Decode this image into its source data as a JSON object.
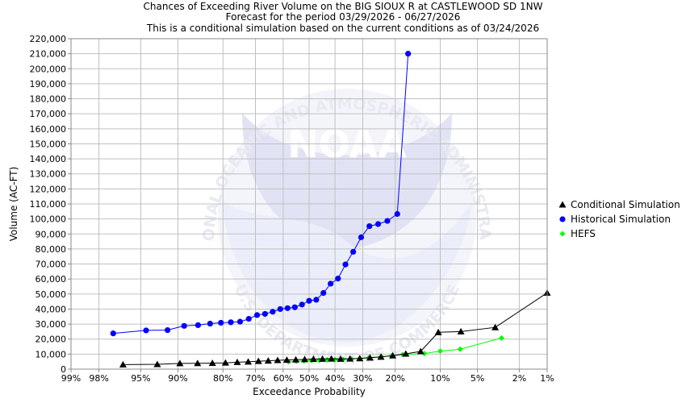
{
  "chart_data": {
    "type": "line",
    "title_lines": [
      "Chances of Exceeding River Volume on the BIG SIOUX R at CASTLEWOOD SD 1NW",
      "Forecast for the period 03/29/2026 - 06/27/2026",
      "This is a conditional simulation based on the current conditions as of 03/24/2026"
    ],
    "xlabel": "Exceedance Probability",
    "ylabel": "Volume (AC-FT)",
    "x_scale": "normal-probability",
    "x_ticks": [
      {
        "p": 0.99,
        "label": "99%"
      },
      {
        "p": 0.98,
        "label": "98%"
      },
      {
        "p": 0.95,
        "label": "95%"
      },
      {
        "p": 0.9,
        "label": "90%"
      },
      {
        "p": 0.8,
        "label": "80%"
      },
      {
        "p": 0.7,
        "label": "70%"
      },
      {
        "p": 0.6,
        "label": "60%"
      },
      {
        "p": 0.5,
        "label": "50%"
      },
      {
        "p": 0.4,
        "label": "40%"
      },
      {
        "p": 0.3,
        "label": "30%"
      },
      {
        "p": 0.2,
        "label": "20%"
      },
      {
        "p": 0.1,
        "label": "10%"
      },
      {
        "p": 0.05,
        "label": "5%"
      },
      {
        "p": 0.02,
        "label": "2%"
      },
      {
        "p": 0.01,
        "label": "1%"
      }
    ],
    "ylim": [
      0,
      220000
    ],
    "y_ticks": [
      {
        "v": 0,
        "label": "0"
      },
      {
        "v": 10000,
        "label": "10,000"
      },
      {
        "v": 20000,
        "label": "20,000"
      },
      {
        "v": 30000,
        "label": "30,000"
      },
      {
        "v": 40000,
        "label": "40,000"
      },
      {
        "v": 50000,
        "label": "50,000"
      },
      {
        "v": 60000,
        "label": "60,000"
      },
      {
        "v": 70000,
        "label": "70,000"
      },
      {
        "v": 80000,
        "label": "80,000"
      },
      {
        "v": 90000,
        "label": "90,000"
      },
      {
        "v": 100000,
        "label": "100,000"
      },
      {
        "v": 110000,
        "label": "110,000"
      },
      {
        "v": 120000,
        "label": "120,000"
      },
      {
        "v": 130000,
        "label": "130,000"
      },
      {
        "v": 140000,
        "label": "140,000"
      },
      {
        "v": 150000,
        "label": "150,000"
      },
      {
        "v": 160000,
        "label": "160,000"
      },
      {
        "v": 170000,
        "label": "170,000"
      },
      {
        "v": 180000,
        "label": "180,000"
      },
      {
        "v": 190000,
        "label": "190,000"
      },
      {
        "v": 200000,
        "label": "200,000"
      },
      {
        "v": 210000,
        "label": "210,000"
      },
      {
        "v": 220000,
        "label": "220,000"
      }
    ],
    "grid": true,
    "legend_position": "right",
    "watermark": {
      "logo_text": "NOAA",
      "arc_top": "NATIONAL OCEANIC AND ATMOSPHERIC ADMINISTRATION",
      "arc_bottom": "U.S. DEPARTMENT OF COMMERCE"
    },
    "series": [
      {
        "name": "Conditional Simulation",
        "color": "#000000",
        "marker": "triangle",
        "points": [
          [
            0.9655,
            3000
          ],
          [
            0.931,
            3200
          ],
          [
            0.8966,
            3800
          ],
          [
            0.8621,
            3900
          ],
          [
            0.8276,
            4000
          ],
          [
            0.7931,
            4200
          ],
          [
            0.7586,
            4600
          ],
          [
            0.7241,
            4900
          ],
          [
            0.6897,
            5300
          ],
          [
            0.6552,
            5600
          ],
          [
            0.6207,
            5900
          ],
          [
            0.5862,
            6100
          ],
          [
            0.5517,
            6300
          ],
          [
            0.5172,
            6500
          ],
          [
            0.4828,
            6700
          ],
          [
            0.4483,
            6800
          ],
          [
            0.4138,
            6900
          ],
          [
            0.3793,
            6800
          ],
          [
            0.3448,
            6900
          ],
          [
            0.3103,
            7100
          ],
          [
            0.2759,
            7600
          ],
          [
            0.2414,
            8100
          ],
          [
            0.2069,
            9000
          ],
          [
            0.1724,
            10200
          ],
          [
            0.1379,
            11800
          ],
          [
            0.1034,
            24500
          ],
          [
            0.069,
            25000
          ],
          [
            0.0345,
            27800
          ],
          [
            0.01,
            50800
          ]
        ]
      },
      {
        "name": "Historical Simulation",
        "color": "#0000ff",
        "marker": "circle",
        "points": [
          [
            0.9722,
            23800
          ],
          [
            0.9444,
            25800
          ],
          [
            0.9167,
            26000
          ],
          [
            0.8889,
            28800
          ],
          [
            0.8611,
            29300
          ],
          [
            0.8333,
            30300
          ],
          [
            0.8056,
            30900
          ],
          [
            0.7778,
            31200
          ],
          [
            0.75,
            31600
          ],
          [
            0.7222,
            33500
          ],
          [
            0.6944,
            36000
          ],
          [
            0.6667,
            36800
          ],
          [
            0.6389,
            38200
          ],
          [
            0.6111,
            40000
          ],
          [
            0.5833,
            40600
          ],
          [
            0.5556,
            41200
          ],
          [
            0.5278,
            43000
          ],
          [
            0.5,
            45500
          ],
          [
            0.4722,
            46200
          ],
          [
            0.4444,
            50700
          ],
          [
            0.4167,
            56900
          ],
          [
            0.3889,
            60300
          ],
          [
            0.3611,
            69700
          ],
          [
            0.3333,
            78100
          ],
          [
            0.3056,
            87800
          ],
          [
            0.2778,
            95200
          ],
          [
            0.25,
            96600
          ],
          [
            0.2222,
            98700
          ],
          [
            0.1944,
            103300
          ],
          [
            0.1667,
            210000
          ]
        ]
      },
      {
        "name": "HEFS",
        "color": "#00ff00",
        "marker": "diamond",
        "points": [
          [
            0.58,
            4900
          ],
          [
            0.55,
            5200
          ],
          [
            0.52,
            5500
          ],
          [
            0.49,
            5800
          ],
          [
            0.46,
            5900
          ],
          [
            0.43,
            6200
          ],
          [
            0.4,
            6300
          ],
          [
            0.37,
            6500
          ],
          [
            0.34,
            6800
          ],
          [
            0.31,
            7200
          ],
          [
            0.28,
            7600
          ],
          [
            0.24,
            8300
          ],
          [
            0.21,
            8900
          ],
          [
            0.18,
            9700
          ],
          [
            0.13,
            10400
          ],
          [
            0.1,
            12000
          ],
          [
            0.07,
            13300
          ],
          [
            0.03,
            20700
          ]
        ]
      }
    ]
  }
}
